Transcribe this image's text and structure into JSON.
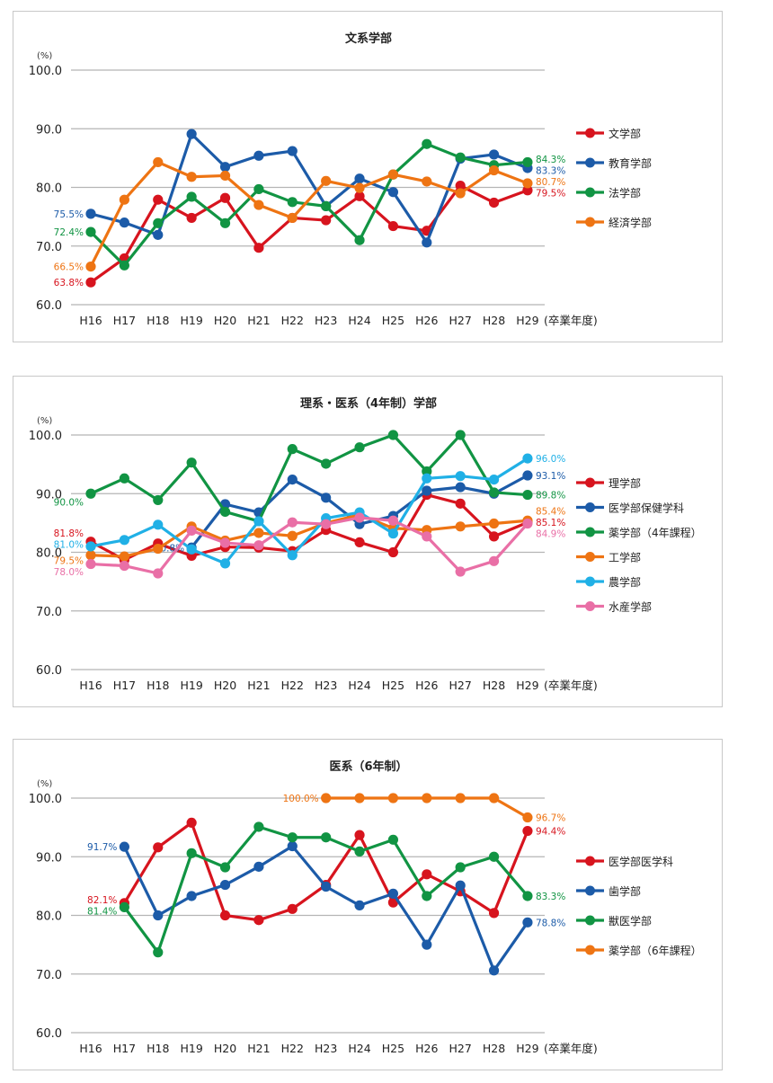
{
  "chart_data": [
    {
      "type": "line",
      "title": "文系学部",
      "ylabel": "(%)",
      "xlabel": "(卒業年度)",
      "ylim": [
        60,
        100
      ],
      "yticks": [
        "60.0",
        "70.0",
        "80.0",
        "90.0",
        "100.0"
      ],
      "categories": [
        "H16",
        "H17",
        "H18",
        "H19",
        "H20",
        "H21",
        "H22",
        "H23",
        "H24",
        "H25",
        "H26",
        "H27",
        "H28",
        "H29"
      ],
      "grid": true,
      "legend_position": "right",
      "series": [
        {
          "name": "文学部",
          "color": "#d7141e",
          "values": [
            63.8,
            67.9,
            77.9,
            74.8,
            78.2,
            69.7,
            74.8,
            74.4,
            78.5,
            73.4,
            72.6,
            80.3,
            77.4,
            79.5
          ],
          "first_label": "63.8%",
          "last_label": "79.5%"
        },
        {
          "name": "教育学部",
          "color": "#1c5ba8",
          "values": [
            75.5,
            74.0,
            71.9,
            89.1,
            83.5,
            85.4,
            86.2,
            76.8,
            81.5,
            79.2,
            70.6,
            84.9,
            85.6,
            83.3
          ],
          "first_label": "75.5%",
          "last_label": "83.3%"
        },
        {
          "name": "法学部",
          "color": "#119443",
          "values": [
            72.4,
            66.7,
            73.9,
            78.4,
            73.9,
            79.7,
            77.5,
            76.8,
            71.0,
            82.2,
            87.4,
            85.1,
            83.8,
            84.3
          ],
          "first_label": "72.4%",
          "last_label": "84.3%"
        },
        {
          "name": "経済学部",
          "color": "#ee7413",
          "values": [
            66.5,
            77.9,
            84.3,
            81.8,
            82.0,
            77.0,
            74.8,
            81.1,
            79.9,
            82.2,
            81.0,
            79.0,
            82.9,
            80.7
          ],
          "first_label": "66.5%",
          "last_label": "80.7%"
        }
      ]
    },
    {
      "type": "line",
      "title": "理系・医系（4年制）学部",
      "ylabel": "(%)",
      "xlabel": "(卒業年度)",
      "ylim": [
        60,
        100
      ],
      "yticks": [
        "60.0",
        "70.0",
        "80.0",
        "90.0",
        "100.0"
      ],
      "categories": [
        "H16",
        "H17",
        "H18",
        "H19",
        "H20",
        "H21",
        "H22",
        "H23",
        "H24",
        "H25",
        "H26",
        "H27",
        "H28",
        "H29"
      ],
      "grid": true,
      "legend_position": "right",
      "series": [
        {
          "name": "理学部",
          "color": "#d7141e",
          "values": [
            81.8,
            78.7,
            81.5,
            79.4,
            80.9,
            80.8,
            80.2,
            83.8,
            81.7,
            80.0,
            89.8,
            88.3,
            82.7,
            85.1
          ],
          "first_label": "81.8%",
          "last_label": "85.1%"
        },
        {
          "name": "医学部保健学科",
          "color": "#1c5ba8",
          "values": [
            null,
            null,
            null,
            80.8,
            88.2,
            86.8,
            92.4,
            89.3,
            84.8,
            86.2,
            90.5,
            91.1,
            90.0,
            93.1
          ],
          "first_label": "80.8%",
          "last_label": "93.1%"
        },
        {
          "name": "薬学部（4年課程）",
          "color": "#119443",
          "values": [
            90.0,
            92.6,
            88.9,
            95.3,
            86.9,
            85.3,
            97.6,
            95.1,
            97.9,
            100.0,
            93.8,
            100.0,
            90.2,
            89.8
          ],
          "first_label": "90.0%",
          "last_label": "89.8%"
        },
        {
          "name": "工学部",
          "color": "#ee7413",
          "values": [
            79.5,
            79.3,
            80.6,
            84.4,
            82.0,
            83.3,
            82.8,
            85.0,
            86.4,
            84.1,
            83.8,
            84.4,
            84.9,
            85.4
          ],
          "first_label": "79.5%",
          "last_label": "85.4%"
        },
        {
          "name": "農学部",
          "color": "#20b0e6",
          "values": [
            81.0,
            82.1,
            84.7,
            80.5,
            78.1,
            85.3,
            79.5,
            85.8,
            86.8,
            83.2,
            92.6,
            93.0,
            92.4,
            96.0
          ],
          "first_label": "81.0%",
          "last_label": "96.0%"
        },
        {
          "name": "水産学部",
          "color": "#e96fa6",
          "values": [
            78.0,
            77.7,
            76.4,
            83.7,
            81.6,
            81.2,
            85.1,
            84.8,
            85.9,
            85.4,
            82.7,
            76.7,
            78.5,
            84.9
          ],
          "first_label": "78.0%",
          "last_label": "84.9%"
        }
      ]
    },
    {
      "type": "line",
      "title": "医系（6年制）",
      "ylabel": "(%)",
      "xlabel": "(卒業年度)",
      "ylim": [
        60,
        100
      ],
      "yticks": [
        "60.0",
        "70.0",
        "80.0",
        "90.0",
        "100.0"
      ],
      "categories": [
        "H16",
        "H17",
        "H18",
        "H19",
        "H20",
        "H21",
        "H22",
        "H23",
        "H24",
        "H25",
        "H26",
        "H27",
        "H28",
        "H29"
      ],
      "grid": true,
      "legend_position": "right",
      "series": [
        {
          "name": "医学部医学科",
          "color": "#d7141e",
          "values": [
            null,
            82.1,
            91.6,
            95.8,
            80.0,
            79.2,
            81.1,
            85.2,
            93.7,
            82.2,
            87.0,
            84.1,
            80.4,
            94.4
          ],
          "first_label": "82.1%",
          "last_label": "94.4%"
        },
        {
          "name": "歯学部",
          "color": "#1c5ba8",
          "values": [
            null,
            91.7,
            80.0,
            83.3,
            85.2,
            88.3,
            91.8,
            84.9,
            81.7,
            83.7,
            75.0,
            85.1,
            70.6,
            78.8
          ],
          "first_label": "91.7%",
          "last_label": "78.8%"
        },
        {
          "name": "獣医学部",
          "color": "#119443",
          "values": [
            null,
            81.4,
            73.7,
            90.6,
            88.2,
            95.1,
            93.3,
            93.3,
            90.9,
            92.9,
            83.3,
            88.2,
            90.0,
            83.3
          ],
          "first_label": "81.4%",
          "last_label": "83.3%"
        },
        {
          "name": "薬学部（6年課程）",
          "color": "#ee7413",
          "values": [
            null,
            null,
            null,
            null,
            null,
            null,
            null,
            100.0,
            100.0,
            100.0,
            100.0,
            100.0,
            100.0,
            96.7
          ],
          "first_label": "100.0%",
          "last_label": "96.7%"
        }
      ]
    }
  ]
}
